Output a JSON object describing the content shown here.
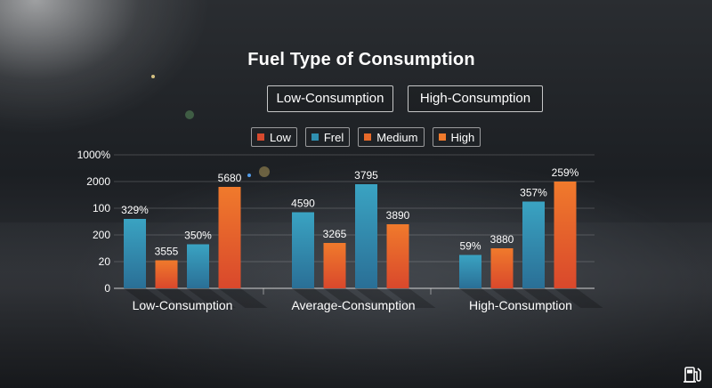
{
  "tabs": [
    "Low-Consumption",
    "High-Consumption"
  ],
  "legend": [
    {
      "label": "Low",
      "color": "#d84a2e"
    },
    {
      "label": "Frel",
      "color": "#2f8fb0"
    },
    {
      "label": "Medium",
      "color": "#e86a2a"
    },
    {
      "label": "High",
      "color": "#f07a2c"
    }
  ],
  "chart_data": {
    "type": "bar",
    "title": "Fuel Type of Consumption",
    "categories": [
      "Low-Consumption",
      "Average-Consumption",
      "High-Consumption"
    ],
    "y_tick_labels": [
      "0",
      "20",
      "200",
      "100",
      "2000",
      "1000%"
    ],
    "ylim": [
      0,
      5
    ],
    "grid": true,
    "bars": [
      {
        "category": 0,
        "value": 2.6,
        "label": "329%",
        "color": "blue"
      },
      {
        "category": 0,
        "value": 1.05,
        "label": "3555",
        "color": "orange"
      },
      {
        "category": 0,
        "value": 1.65,
        "label": "350%",
        "color": "blue"
      },
      {
        "category": 0,
        "value": 3.8,
        "label": "5680",
        "color": "orange"
      },
      {
        "category": 1,
        "value": 2.85,
        "label": "4590",
        "color": "blue"
      },
      {
        "category": 1,
        "value": 1.7,
        "label": "3265",
        "color": "orange"
      },
      {
        "category": 1,
        "value": 3.9,
        "label": "3795",
        "color": "blue"
      },
      {
        "category": 1,
        "value": 2.4,
        "label": "3890",
        "color": "orange"
      },
      {
        "category": 2,
        "value": 1.25,
        "label": "59%",
        "color": "blue"
      },
      {
        "category": 2,
        "value": 1.5,
        "label": "3880",
        "color": "orange"
      },
      {
        "category": 2,
        "value": 3.25,
        "label": "357%",
        "color": "blue"
      },
      {
        "category": 2,
        "value": 4.0,
        "label": "259%",
        "color": "orange"
      }
    ]
  }
}
